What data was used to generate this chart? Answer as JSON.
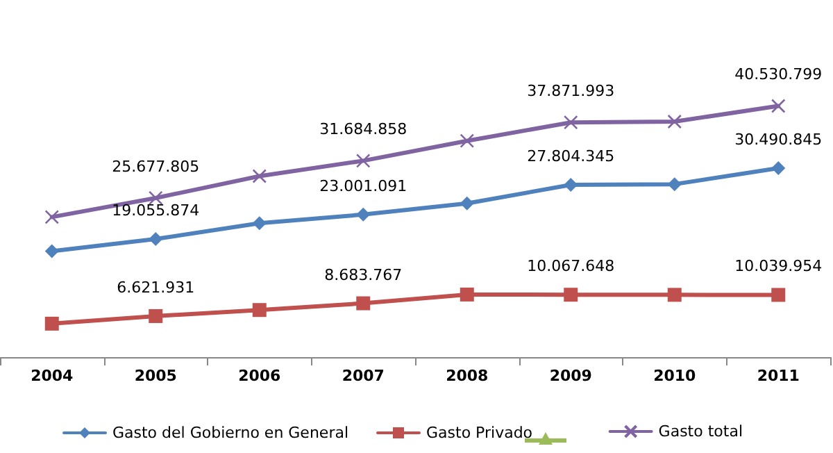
{
  "chart_data": {
    "type": "line",
    "categories": [
      "2004",
      "2005",
      "2006",
      "2007",
      "2008",
      "2009",
      "2010",
      "2011"
    ],
    "legend": "bottom",
    "grid": false,
    "series": [
      {
        "name": "Gasto del Gobierno en General",
        "color": "#4f81bd",
        "marker": "diamond",
        "values": [
          17100000,
          19055874,
          21600000,
          23001091,
          24800000,
          27804345,
          27900000,
          30490845
        ],
        "value_labels": [
          null,
          "19.055.874",
          null,
          "23.001.091",
          null,
          "27.804.345",
          null,
          "30.490.845"
        ]
      },
      {
        "name": "Gasto Privado",
        "color": "#c0504d",
        "marker": "square",
        "values": [
          5400000,
          6621931,
          7600000,
          8683767,
          10100000,
          10067648,
          10050000,
          10039954
        ],
        "value_labels": [
          null,
          "6.621.931",
          null,
          "8.683.767",
          null,
          "10.067.648",
          null,
          "10.039.954"
        ]
      },
      {
        "name": "Gasto total",
        "color": "#8064a2",
        "marker": "cross",
        "values": [
          22600000,
          25677805,
          29200000,
          31684858,
          34900000,
          37871993,
          38000000,
          40530799
        ],
        "value_labels": [
          null,
          "25.677.805",
          null,
          "31.684.858",
          null,
          "37.871.993",
          null,
          "40.530.799"
        ]
      }
    ]
  }
}
